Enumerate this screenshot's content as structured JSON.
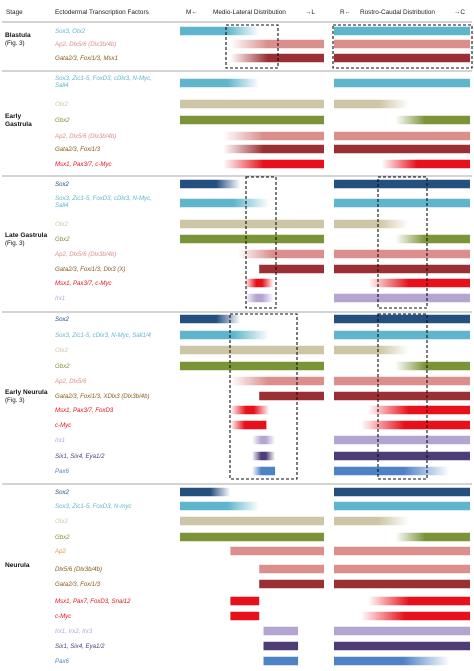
{
  "headers": {
    "stage": "Stage",
    "factors": "Ectodermal Transcription Factors",
    "ml_m": "M←",
    "ml_title": "Medio-Lateral Distribution",
    "ml_l": "→L",
    "rc_r": "R←",
    "rc_title": "Rostro-Caudal Distribution",
    "rc_c": "→C"
  },
  "colors": {
    "cyan": "#5fb6cc",
    "salmon": "#da8f8d",
    "darkred": "#9a3033",
    "khaki": "#cdc6a6",
    "olive": "#7c9438",
    "navy": "#24507f",
    "red": "#e8101a",
    "purple": "#4e3c76",
    "lilac": "#b3a5cf",
    "blue": "#4d82c4",
    "brown": "#8a5a1a",
    "orange": "#e39a3a"
  },
  "stages": [
    {
      "name": "Blastula",
      "sub": "(Fig. 3)",
      "rows": [
        {
          "label": "Sox3, Otx2",
          "text_color": "cyan",
          "bar_color": "cyan",
          "ml": {
            "start": 0.0,
            "end": 0.55,
            "fade": "right"
          },
          "rc": {
            "start": 0.0,
            "end": 1.0,
            "fade": "none"
          }
        },
        {
          "label": "Ap2, Dlx5/6 (Dlx3b/4b)",
          "text_color": "salmon",
          "bar_color": "salmon",
          "ml": {
            "start": 0.35,
            "end": 1.0,
            "fade": "left"
          },
          "rc": {
            "start": 0.0,
            "end": 1.0,
            "fade": "none"
          }
        },
        {
          "label": "Gata2/3, Foxi1/3, Msx1",
          "text_color": "brown",
          "bar_color": "darkred",
          "ml": {
            "start": 0.35,
            "end": 1.0,
            "fade": "left"
          },
          "rc": {
            "start": 0.0,
            "end": 1.0,
            "fade": "none"
          }
        }
      ]
    },
    {
      "name": "Early",
      "name2": "Gastrula",
      "rows": [
        {
          "label": "Sox3, Zic1-5, FoxD3, cDlx3, N-Myc,",
          "label2": "Sall4",
          "text_color": "cyan",
          "bar_color": "cyan",
          "ml": {
            "start": 0.0,
            "end": 0.55,
            "fade": "right"
          },
          "rc": {
            "start": 0.0,
            "end": 1.0,
            "fade": "none"
          }
        },
        {
          "label": "Otx2",
          "text_color": "khaki",
          "bar_color": "khaki",
          "ml": {
            "start": 0.0,
            "end": 1.0,
            "fade": "none"
          },
          "rc": {
            "start": 0.0,
            "end": 0.55,
            "fade": "right"
          }
        },
        {
          "label": "Gbx2",
          "text_color": "olive",
          "bar_color": "olive",
          "ml": {
            "start": 0.0,
            "end": 1.0,
            "fade": "none"
          },
          "rc": {
            "start": 0.45,
            "end": 1.0,
            "fade": "left"
          }
        },
        {
          "label": "Ap2, Dlx5/6 (Dlx3b/4b)",
          "text_color": "salmon",
          "bar_color": "salmon",
          "ml": {
            "start": 0.3,
            "end": 1.0,
            "fade": "left"
          },
          "rc": {
            "start": 0.0,
            "end": 1.0,
            "fade": "none"
          }
        },
        {
          "label": "Gata2/3, Foxi1/3",
          "text_color": "brown",
          "bar_color": "darkred",
          "ml": {
            "start": 0.3,
            "end": 1.0,
            "fade": "left"
          },
          "rc": {
            "start": 0.0,
            "end": 1.0,
            "fade": "none"
          }
        },
        {
          "label": "Msx1, Pax3/7, c-Myc",
          "text_color": "red",
          "bar_color": "red",
          "ml": {
            "start": 0.3,
            "end": 1.0,
            "fade": "left"
          },
          "rc": {
            "start": 0.35,
            "end": 1.0,
            "fade": "left"
          }
        }
      ]
    },
    {
      "name": "Late Gastrula",
      "sub": "(Fig. 3)",
      "rows": [
        {
          "label": "Sox2",
          "text_color": "navy",
          "bar_color": "navy",
          "ml": {
            "start": 0.0,
            "end": 0.42,
            "fade": "right"
          },
          "rc": {
            "start": 0.0,
            "end": 1.0,
            "fade": "none"
          }
        },
        {
          "label": "Sox3, Zic1-5, FoxD3, cDlx3, N-Myc,",
          "label2": "Sall4",
          "text_color": "cyan",
          "bar_color": "cyan",
          "ml": {
            "start": 0.0,
            "end": 0.62,
            "fade": "right"
          },
          "rc": {
            "start": 0.0,
            "end": 1.0,
            "fade": "none"
          }
        },
        {
          "label": "Otx2",
          "text_color": "khaki",
          "bar_color": "khaki",
          "ml": {
            "start": 0.0,
            "end": 1.0,
            "fade": "none"
          },
          "rc": {
            "start": 0.0,
            "end": 0.55,
            "fade": "right"
          }
        },
        {
          "label": "Gbx2",
          "text_color": "olive",
          "bar_color": "olive",
          "ml": {
            "start": 0.0,
            "end": 1.0,
            "fade": "none"
          },
          "rc": {
            "start": 0.45,
            "end": 1.0,
            "fade": "left"
          }
        },
        {
          "label": "Ap2, Dlx5/6 (Dlx3b/4b)",
          "text_color": "salmon",
          "bar_color": "salmon",
          "ml": {
            "start": 0.4,
            "end": 1.0,
            "fade": "left"
          },
          "rc": {
            "start": 0.0,
            "end": 1.0,
            "fade": "none"
          }
        },
        {
          "label": "Gata2/3, Foxi1/3, Dlx3 (X)",
          "text_color": "brown",
          "bar_color": "darkred",
          "ml": {
            "start": 0.55,
            "end": 1.0,
            "fade": "none"
          },
          "rc": {
            "start": 0.0,
            "end": 1.0,
            "fade": "none"
          }
        },
        {
          "label": "Msx1, Pax3/7, c-Myc",
          "text_color": "red",
          "bar_color": "red",
          "ml": {
            "start": 0.45,
            "end": 0.65,
            "fade": "both"
          },
          "rc": {
            "start": 0.25,
            "end": 1.0,
            "fade": "left"
          }
        },
        {
          "label": "Irx1",
          "text_color": "lilac",
          "bar_color": "lilac",
          "ml": {
            "start": 0.45,
            "end": 0.65,
            "fade": "both"
          },
          "rc": {
            "start": 0.0,
            "end": 1.0,
            "fade": "none"
          }
        }
      ]
    },
    {
      "name": "Early Neurula",
      "sub": "(Fig. 3)",
      "rows": [
        {
          "label": "Sox2",
          "text_color": "navy",
          "bar_color": "navy",
          "ml": {
            "start": 0.0,
            "end": 0.42,
            "fade": "right"
          },
          "rc": {
            "start": 0.0,
            "end": 1.0,
            "fade": "none"
          }
        },
        {
          "label": "Sox3, Zic1-5, cDlx3, N-Myc, Sall1/4",
          "text_color": "cyan",
          "bar_color": "cyan",
          "ml": {
            "start": 0.0,
            "end": 0.62,
            "fade": "right"
          },
          "rc": {
            "start": 0.0,
            "end": 1.0,
            "fade": "none"
          }
        },
        {
          "label": "Otx2",
          "text_color": "khaki",
          "bar_color": "khaki",
          "ml": {
            "start": 0.0,
            "end": 1.0,
            "fade": "none"
          },
          "rc": {
            "start": 0.0,
            "end": 0.55,
            "fade": "right"
          }
        },
        {
          "label": "Gbx2",
          "text_color": "olive",
          "bar_color": "olive",
          "ml": {
            "start": 0.0,
            "end": 1.0,
            "fade": "none"
          },
          "rc": {
            "start": 0.45,
            "end": 1.0,
            "fade": "left"
          }
        },
        {
          "label": "Ap2, Dlx5/6",
          "text_color": "salmon",
          "bar_color": "salmon",
          "ml": {
            "start": 0.35,
            "end": 1.0,
            "fade": "left"
          },
          "rc": {
            "start": 0.0,
            "end": 1.0,
            "fade": "none"
          }
        },
        {
          "label": "Gata2/3, Foxi1/3, XDlx3 (Dlx3b/4b)",
          "text_color": "brown",
          "bar_color": "darkred",
          "ml": {
            "start": 0.55,
            "end": 1.0,
            "fade": "none"
          },
          "rc": {
            "start": 0.0,
            "end": 1.0,
            "fade": "none"
          }
        },
        {
          "label": "Msx1, Pax3/7, FoxD3",
          "text_color": "red",
          "bar_color": "red",
          "ml": {
            "start": 0.35,
            "end": 0.62,
            "fade": "both"
          },
          "rc": {
            "start": 0.25,
            "end": 1.0,
            "fade": "left"
          }
        },
        {
          "label": "c-Myc",
          "text_color": "red",
          "bar_color": "red",
          "ml": {
            "start": 0.35,
            "end": 0.6,
            "fade": "left"
          },
          "rc": {
            "start": 0.2,
            "end": 1.0,
            "fade": "left"
          }
        },
        {
          "label": "Irx1",
          "text_color": "lilac",
          "bar_color": "lilac",
          "ml": {
            "start": 0.5,
            "end": 0.66,
            "fade": "both"
          },
          "rc": {
            "start": 0.0,
            "end": 1.0,
            "fade": "none"
          }
        },
        {
          "label": "Six1, Six4, Eya1/2",
          "text_color": "purple",
          "bar_color": "purple",
          "ml": {
            "start": 0.5,
            "end": 0.66,
            "fade": "both"
          },
          "rc": {
            "start": 0.0,
            "end": 1.0,
            "fade": "none"
          }
        },
        {
          "label": "Pax6",
          "text_color": "blue",
          "bar_color": "blue",
          "ml": {
            "start": 0.5,
            "end": 0.66,
            "fade": "left"
          },
          "rc": {
            "start": 0.0,
            "end": 0.85,
            "fade": "right"
          }
        }
      ]
    },
    {
      "name": "Neurula",
      "rows": [
        {
          "label": "Sox2",
          "text_color": "navy",
          "bar_color": "navy",
          "ml": {
            "start": 0.0,
            "end": 0.35,
            "fade": "right"
          },
          "rc": {
            "start": 0.0,
            "end": 1.0,
            "fade": "none"
          }
        },
        {
          "label": "Sox3, Zic1-5, FoxD3, N-myc",
          "text_color": "cyan",
          "bar_color": "cyan",
          "ml": {
            "start": 0.0,
            "end": 0.55,
            "fade": "right"
          },
          "rc": {
            "start": 0.0,
            "end": 1.0,
            "fade": "none"
          }
        },
        {
          "label": "Otx2",
          "text_color": "khaki",
          "bar_color": "khaki",
          "ml": {
            "start": 0.0,
            "end": 1.0,
            "fade": "none"
          },
          "rc": {
            "start": 0.0,
            "end": 0.55,
            "fade": "right"
          }
        },
        {
          "label": "Gbx2",
          "text_color": "olive",
          "bar_color": "olive",
          "ml": {
            "start": 0.0,
            "end": 1.0,
            "fade": "none"
          },
          "rc": {
            "start": 0.45,
            "end": 1.0,
            "fade": "left"
          }
        },
        {
          "label": "Ap2",
          "text_color": "orange",
          "bar_color": "salmon",
          "ml": {
            "start": 0.35,
            "end": 1.0,
            "fade": "none"
          },
          "rc": {
            "start": 0.0,
            "end": 1.0,
            "fade": "none"
          }
        },
        {
          "label": "Dlx5/6 (Dlx3b/4b)",
          "text_color": "brown",
          "bar_color": "salmon",
          "ml": {
            "start": 0.55,
            "end": 1.0,
            "fade": "none"
          },
          "rc": {
            "start": 0.0,
            "end": 1.0,
            "fade": "none"
          }
        },
        {
          "label": "Gata2/3, Foxi1/3",
          "text_color": "brown",
          "bar_color": "darkred",
          "ml": {
            "start": 0.55,
            "end": 1.0,
            "fade": "none"
          },
          "rc": {
            "start": 0.0,
            "end": 1.0,
            "fade": "none"
          }
        },
        {
          "label": "Msx1, Pax7, FoxD3, Snai12",
          "text_color": "red",
          "bar_color": "red",
          "ml": {
            "start": 0.35,
            "end": 0.55,
            "fade": "none"
          },
          "rc": {
            "start": 0.25,
            "end": 1.0,
            "fade": "left"
          }
        },
        {
          "label": "c-Myc",
          "text_color": "red",
          "bar_color": "red",
          "ml": {
            "start": 0.35,
            "end": 0.55,
            "fade": "none"
          },
          "rc": {
            "start": 0.2,
            "end": 1.0,
            "fade": "left"
          }
        },
        {
          "label": "Irx1, Irx2, Irx3",
          "text_color": "lilac",
          "bar_color": "lilac",
          "ml": {
            "start": 0.58,
            "end": 0.82,
            "fade": "none"
          },
          "rc": {
            "start": 0.0,
            "end": 1.0,
            "fade": "none"
          }
        },
        {
          "label": "Six1, Six4, Eya1/2",
          "text_color": "purple",
          "bar_color": "purple",
          "ml": {
            "start": 0.58,
            "end": 0.82,
            "fade": "none"
          },
          "rc": {
            "start": 0.0,
            "end": 1.0,
            "fade": "none"
          }
        },
        {
          "label": "Pax6",
          "text_color": "blue",
          "bar_color": "blue",
          "ml": {
            "start": 0.58,
            "end": 0.82,
            "fade": "none"
          },
          "rc": {
            "start": 0.0,
            "end": 0.85,
            "fade": "right"
          }
        }
      ]
    }
  ]
}
